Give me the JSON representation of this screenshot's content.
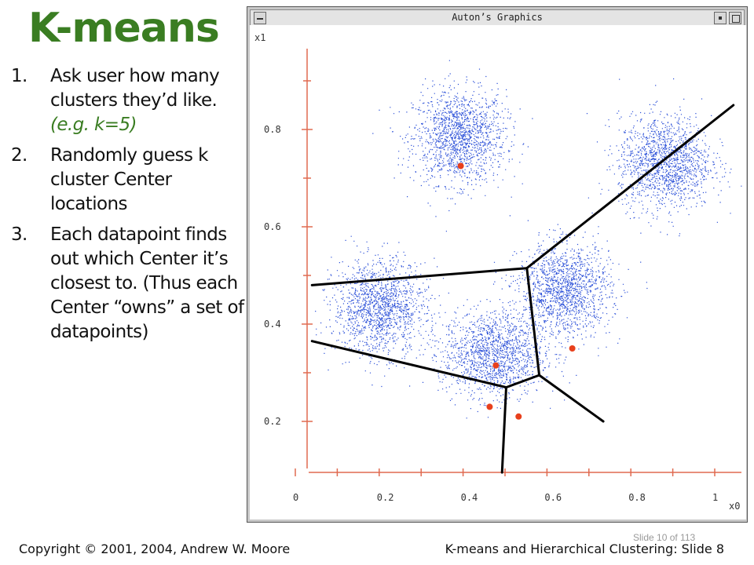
{
  "slide": {
    "title": "K-means",
    "steps": [
      {
        "num": "1.",
        "text": "Ask user how many clusters they’d like.",
        "example": "(e.g. k=5)"
      },
      {
        "num": "2.",
        "text": "Randomly guess k cluster Center locations"
      },
      {
        "num": "3.",
        "text": "Each datapoint finds out which Center it’s closest to. (Thus each Center “owns” a set of datapoints)"
      }
    ],
    "footer_left": "Copyright © 2001, 2004, Andrew W. Moore",
    "footer_right": "K-means and Hierarchical Clustering: Slide 8",
    "slide_number": "Slide 10 of 113"
  },
  "window": {
    "title": "Auton’s Graphics"
  },
  "chart_data": {
    "type": "scatter",
    "xlabel": "x0",
    "ylabel": "x1",
    "xlim": [
      -0.05,
      1.05
    ],
    "ylim": [
      0.07,
      0.93
    ],
    "xticks": [
      "0",
      "0.2",
      "0.4",
      "0.6",
      "0.8",
      "1"
    ],
    "yticks": [
      "0.2",
      "0.4",
      "0.6",
      "0.8"
    ],
    "point_color": "#2a4fd8",
    "center_color": "#e8401c",
    "axis_color": "#e06a50",
    "boundary_color": "#000000",
    "clusters": [
      {
        "cx": 0.4,
        "cy": 0.78,
        "sx": 0.055,
        "sy": 0.055,
        "n": 1500
      },
      {
        "cx": 0.89,
        "cy": 0.72,
        "sx": 0.055,
        "sy": 0.055,
        "n": 1500
      },
      {
        "cx": 0.21,
        "cy": 0.38,
        "sx": 0.055,
        "sy": 0.055,
        "n": 1500
      },
      {
        "cx": 0.65,
        "cy": 0.42,
        "sx": 0.055,
        "sy": 0.055,
        "n": 1500
      },
      {
        "cx": 0.48,
        "cy": 0.27,
        "sx": 0.06,
        "sy": 0.05,
        "n": 1500
      }
    ],
    "centers": [
      {
        "x": 0.37,
        "y": 0.725
      },
      {
        "x": 0.64,
        "y": 0.35
      },
      {
        "x": 0.455,
        "y": 0.315
      },
      {
        "x": 0.44,
        "y": 0.23
      },
      {
        "x": 0.51,
        "y": 0.21
      }
    ],
    "boundaries": [
      [
        [
          0.01,
          0.48
        ],
        [
          0.53,
          0.515
        ]
      ],
      [
        [
          0.53,
          0.515
        ],
        [
          1.03,
          0.85
        ]
      ],
      [
        [
          0.53,
          0.515
        ],
        [
          0.56,
          0.295
        ]
      ],
      [
        [
          0.01,
          0.365
        ],
        [
          0.48,
          0.27
        ]
      ],
      [
        [
          0.48,
          0.27
        ],
        [
          0.56,
          0.295
        ]
      ],
      [
        [
          0.48,
          0.27
        ],
        [
          0.47,
          0.095
        ]
      ],
      [
        [
          0.56,
          0.295
        ],
        [
          0.715,
          0.2
        ]
      ]
    ]
  }
}
